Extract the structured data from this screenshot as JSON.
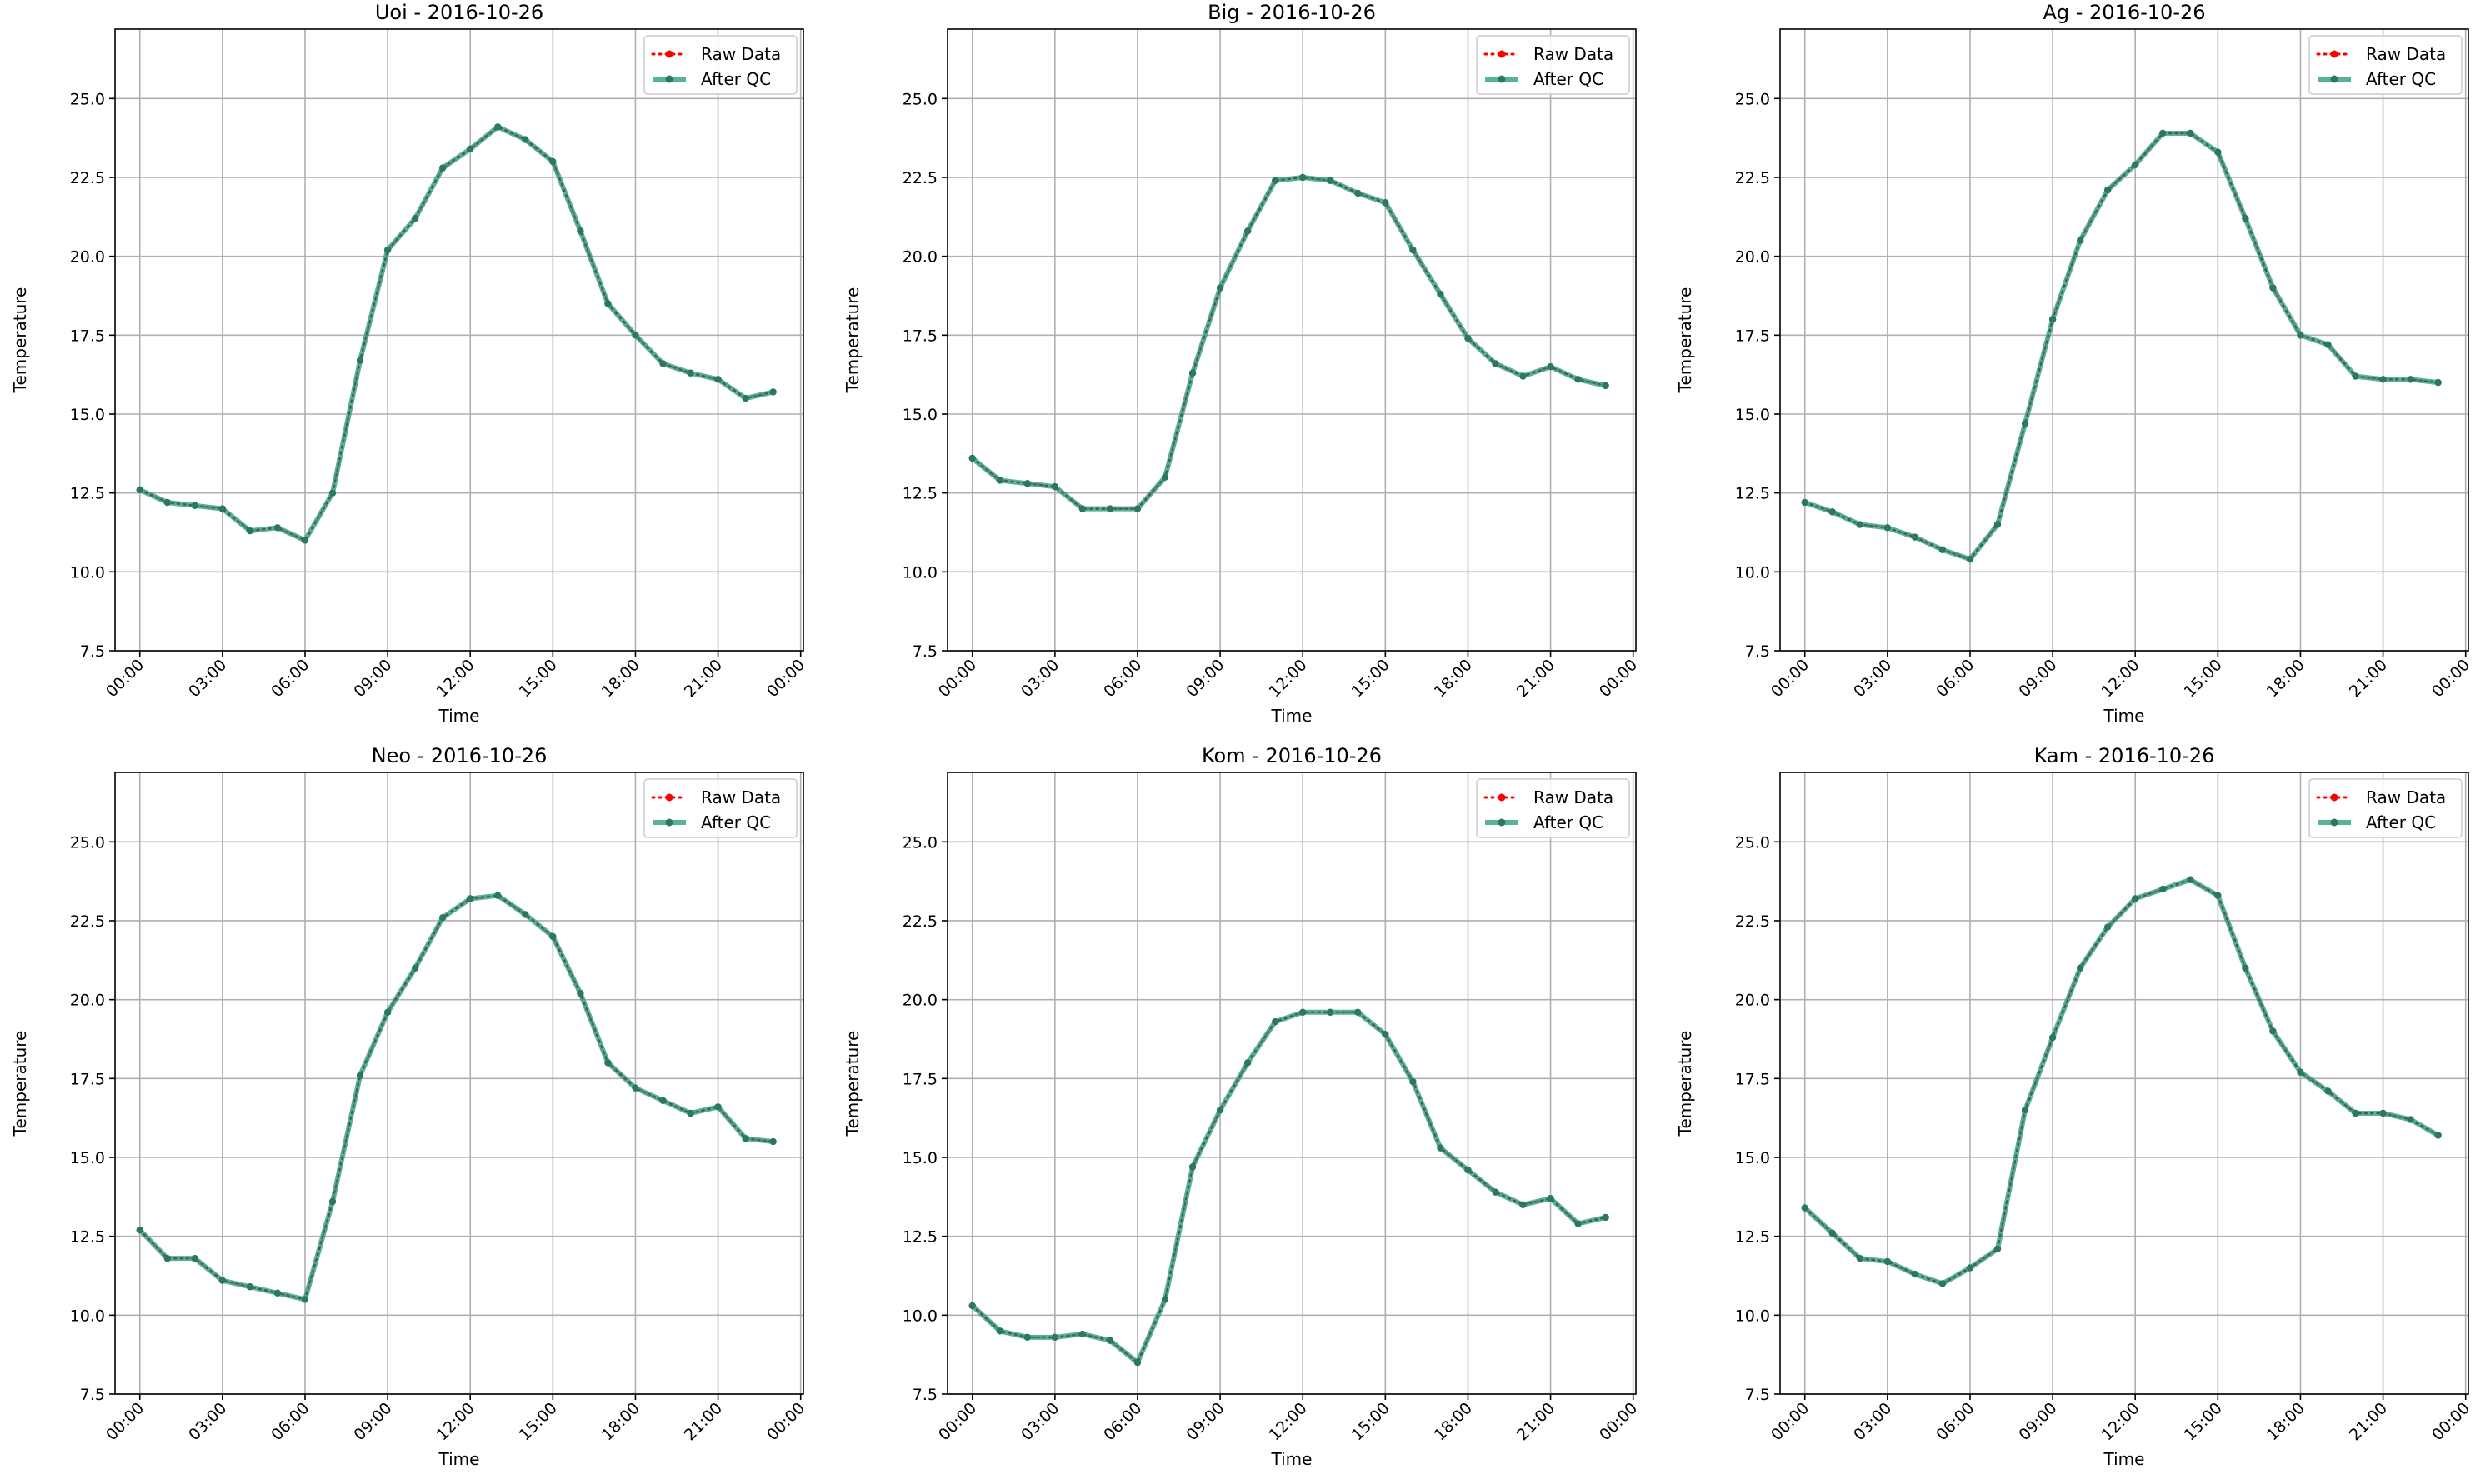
{
  "figure": {
    "y_axis_label": "Temperature",
    "x_axis_label": "Time",
    "x_tick_labels": [
      "00:00",
      "03:00",
      "06:00",
      "09:00",
      "12:00",
      "15:00",
      "18:00",
      "21:00",
      "00:00"
    ],
    "y_tick_labels": [
      "7.5",
      "10.0",
      "12.5",
      "15.0",
      "17.5",
      "20.0",
      "22.5",
      "25.0"
    ],
    "legend": {
      "raw_label": "Raw Data",
      "qc_label": "After QC",
      "placement": "upper right"
    },
    "colors": {
      "raw": "#ff0000",
      "qc_line": "#3aa486",
      "qc_marker": "#2a7864",
      "grid": "#b0b0b0"
    }
  },
  "chart_data": [
    {
      "type": "line",
      "title": "Uoi - 2016-10-26",
      "xlabel": "Time",
      "ylabel": "Temperature",
      "x": [
        "00:00",
        "01:00",
        "02:00",
        "03:00",
        "04:00",
        "05:00",
        "06:00",
        "07:00",
        "08:00",
        "09:00",
        "10:00",
        "11:00",
        "12:00",
        "13:00",
        "14:00",
        "15:00",
        "16:00",
        "17:00",
        "18:00",
        "19:00",
        "20:00",
        "21:00",
        "22:00",
        "23:00"
      ],
      "xlim": [
        "00:00",
        "24:00"
      ],
      "ylim": [
        7.5,
        27.2
      ],
      "grid": true,
      "legend": "top-right",
      "series": [
        {
          "name": "Raw Data",
          "values": [
            12.6,
            12.2,
            12.1,
            12.0,
            11.3,
            11.4,
            11.0,
            12.5,
            16.7,
            20.2,
            21.2,
            22.8,
            23.4,
            24.1,
            23.7,
            23.0,
            20.8,
            18.5,
            17.5,
            16.6,
            16.3,
            16.1,
            15.5,
            15.7
          ]
        },
        {
          "name": "After QC",
          "values": [
            12.6,
            12.2,
            12.1,
            12.0,
            11.3,
            11.4,
            11.0,
            12.5,
            16.7,
            20.2,
            21.2,
            22.8,
            23.4,
            24.1,
            23.7,
            23.0,
            20.8,
            18.5,
            17.5,
            16.6,
            16.3,
            16.1,
            15.5,
            15.7
          ]
        }
      ]
    },
    {
      "type": "line",
      "title": "Big - 2016-10-26",
      "xlabel": "Time",
      "ylabel": "Temperature",
      "x": [
        "00:00",
        "01:00",
        "02:00",
        "03:00",
        "04:00",
        "05:00",
        "06:00",
        "07:00",
        "08:00",
        "09:00",
        "10:00",
        "11:00",
        "12:00",
        "13:00",
        "14:00",
        "15:00",
        "16:00",
        "17:00",
        "18:00",
        "19:00",
        "20:00",
        "21:00",
        "22:00",
        "23:00"
      ],
      "xlim": [
        "00:00",
        "24:00"
      ],
      "ylim": [
        7.5,
        27.2
      ],
      "grid": true,
      "legend": "top-right",
      "series": [
        {
          "name": "Raw Data",
          "values": [
            13.6,
            12.9,
            12.8,
            12.7,
            12.0,
            12.0,
            12.0,
            13.0,
            16.3,
            19.0,
            20.8,
            22.4,
            22.5,
            22.4,
            22.0,
            21.7,
            20.2,
            18.8,
            17.4,
            16.6,
            16.2,
            16.5,
            16.1,
            15.9
          ]
        },
        {
          "name": "After QC",
          "values": [
            13.6,
            12.9,
            12.8,
            12.7,
            12.0,
            12.0,
            12.0,
            13.0,
            16.3,
            19.0,
            20.8,
            22.4,
            22.5,
            22.4,
            22.0,
            21.7,
            20.2,
            18.8,
            17.4,
            16.6,
            16.2,
            16.5,
            16.1,
            15.9
          ]
        }
      ]
    },
    {
      "type": "line",
      "title": "Ag - 2016-10-26",
      "xlabel": "Time",
      "ylabel": "Temperature",
      "x": [
        "00:00",
        "01:00",
        "02:00",
        "03:00",
        "04:00",
        "05:00",
        "06:00",
        "07:00",
        "08:00",
        "09:00",
        "10:00",
        "11:00",
        "12:00",
        "13:00",
        "14:00",
        "15:00",
        "16:00",
        "17:00",
        "18:00",
        "19:00",
        "20:00",
        "21:00",
        "22:00",
        "23:00"
      ],
      "xlim": [
        "00:00",
        "24:00"
      ],
      "ylim": [
        7.5,
        27.2
      ],
      "grid": true,
      "legend": "top-right",
      "series": [
        {
          "name": "Raw Data",
          "values": [
            12.2,
            11.9,
            11.5,
            11.4,
            11.1,
            10.7,
            10.4,
            11.5,
            14.7,
            18.0,
            20.5,
            22.1,
            22.9,
            23.9,
            23.9,
            23.3,
            21.2,
            19.0,
            17.5,
            17.2,
            16.2,
            16.1,
            16.1,
            16.0
          ]
        },
        {
          "name": "After QC",
          "values": [
            12.2,
            11.9,
            11.5,
            11.4,
            11.1,
            10.7,
            10.4,
            11.5,
            14.7,
            18.0,
            20.5,
            22.1,
            22.9,
            23.9,
            23.9,
            23.3,
            21.2,
            19.0,
            17.5,
            17.2,
            16.2,
            16.1,
            16.1,
            16.0
          ]
        }
      ]
    },
    {
      "type": "line",
      "title": "Neo - 2016-10-26",
      "xlabel": "Time",
      "ylabel": "Temperature",
      "x": [
        "00:00",
        "01:00",
        "02:00",
        "03:00",
        "04:00",
        "05:00",
        "06:00",
        "07:00",
        "08:00",
        "09:00",
        "10:00",
        "11:00",
        "12:00",
        "13:00",
        "14:00",
        "15:00",
        "16:00",
        "17:00",
        "18:00",
        "19:00",
        "20:00",
        "21:00",
        "22:00",
        "23:00"
      ],
      "xlim": [
        "00:00",
        "24:00"
      ],
      "ylim": [
        7.5,
        27.2
      ],
      "grid": true,
      "legend": "top-right",
      "series": [
        {
          "name": "Raw Data",
          "values": [
            12.7,
            11.8,
            11.8,
            11.1,
            10.9,
            10.7,
            10.5,
            13.6,
            17.6,
            19.6,
            21.0,
            22.6,
            23.2,
            23.3,
            22.7,
            22.0,
            20.2,
            18.0,
            17.2,
            16.8,
            16.4,
            16.6,
            15.6,
            15.5
          ]
        },
        {
          "name": "After QC",
          "values": [
            12.7,
            11.8,
            11.8,
            11.1,
            10.9,
            10.7,
            10.5,
            13.6,
            17.6,
            19.6,
            21.0,
            22.6,
            23.2,
            23.3,
            22.7,
            22.0,
            20.2,
            18.0,
            17.2,
            16.8,
            16.4,
            16.6,
            15.6,
            15.5
          ]
        }
      ]
    },
    {
      "type": "line",
      "title": "Kom - 2016-10-26",
      "xlabel": "Time",
      "ylabel": "Temperature",
      "x": [
        "00:00",
        "01:00",
        "02:00",
        "03:00",
        "04:00",
        "05:00",
        "06:00",
        "07:00",
        "08:00",
        "09:00",
        "10:00",
        "11:00",
        "12:00",
        "13:00",
        "14:00",
        "15:00",
        "16:00",
        "17:00",
        "18:00",
        "19:00",
        "20:00",
        "21:00",
        "22:00",
        "23:00"
      ],
      "xlim": [
        "00:00",
        "24:00"
      ],
      "ylim": [
        7.5,
        27.2
      ],
      "grid": true,
      "legend": "top-right",
      "series": [
        {
          "name": "Raw Data",
          "values": [
            10.3,
            9.5,
            9.3,
            9.3,
            9.4,
            9.2,
            8.5,
            10.5,
            14.7,
            16.5,
            18.0,
            19.3,
            19.6,
            19.6,
            19.6,
            18.9,
            17.4,
            15.3,
            14.6,
            13.9,
            13.5,
            13.7,
            12.9,
            13.1
          ]
        },
        {
          "name": "After QC",
          "values": [
            10.3,
            9.5,
            9.3,
            9.3,
            9.4,
            9.2,
            8.5,
            10.5,
            14.7,
            16.5,
            18.0,
            19.3,
            19.6,
            19.6,
            19.6,
            18.9,
            17.4,
            15.3,
            14.6,
            13.9,
            13.5,
            13.7,
            12.9,
            13.1
          ]
        }
      ]
    },
    {
      "type": "line",
      "title": "Kam - 2016-10-26",
      "xlabel": "Time",
      "ylabel": "Temperature",
      "x": [
        "00:00",
        "01:00",
        "02:00",
        "03:00",
        "04:00",
        "05:00",
        "06:00",
        "07:00",
        "08:00",
        "09:00",
        "10:00",
        "11:00",
        "12:00",
        "13:00",
        "14:00",
        "15:00",
        "16:00",
        "17:00",
        "18:00",
        "19:00",
        "20:00",
        "21:00",
        "22:00",
        "23:00"
      ],
      "xlim": [
        "00:00",
        "24:00"
      ],
      "ylim": [
        7.5,
        27.2
      ],
      "grid": true,
      "legend": "top-right",
      "series": [
        {
          "name": "Raw Data",
          "values": [
            13.4,
            12.6,
            11.8,
            11.7,
            11.3,
            11.0,
            11.5,
            12.1,
            16.5,
            18.8,
            21.0,
            22.3,
            23.2,
            23.5,
            23.8,
            23.3,
            21.0,
            19.0,
            17.7,
            17.1,
            16.4,
            16.4,
            16.2,
            15.7
          ]
        },
        {
          "name": "After QC",
          "values": [
            13.4,
            12.6,
            11.8,
            11.7,
            11.3,
            11.0,
            11.5,
            12.1,
            16.5,
            18.8,
            21.0,
            22.3,
            23.2,
            23.5,
            23.8,
            23.3,
            21.0,
            19.0,
            17.7,
            17.1,
            16.4,
            16.4,
            16.2,
            15.7
          ]
        }
      ]
    }
  ]
}
